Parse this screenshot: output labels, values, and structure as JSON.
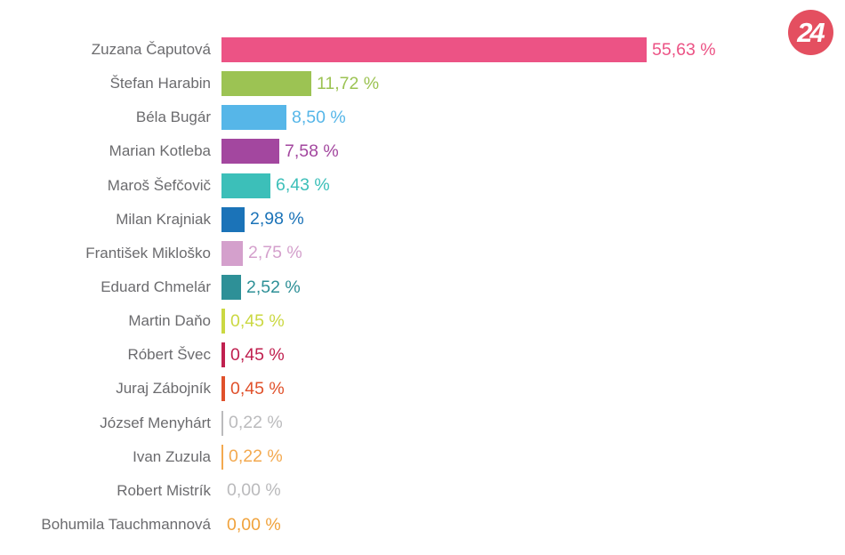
{
  "logo": {
    "text": "24",
    "bg_color": "#e44f60",
    "text_color": "#ffffff"
  },
  "chart_data": {
    "type": "bar",
    "orientation": "horizontal",
    "value_format": "comma_decimal_percent",
    "grid": false,
    "background": "#ffffff",
    "label_color": "#6b6b6e",
    "xlim": [
      0,
      57
    ],
    "categories": [
      "Zuzana Čaputová",
      "Štefan Harabin",
      "Béla Bugár",
      "Marian Kotleba",
      "Maroš Šefčovič",
      "Milan Krajniak",
      "František Mikloško",
      "Eduard Chmelár",
      "Martin Daňo",
      "Róbert Švec",
      "Juraj Zábojník",
      "József Menyhárt",
      "Ivan Zuzula",
      "Robert Mistrík",
      "Bohumila Tauchmannová"
    ],
    "values": [
      55.63,
      11.72,
      8.5,
      7.58,
      6.43,
      2.98,
      2.75,
      2.52,
      0.45,
      0.45,
      0.45,
      0.22,
      0.22,
      0.0,
      0.0
    ],
    "value_labels": [
      "55,63 %",
      "11,72 %",
      "8,50 %",
      "7,58 %",
      "6,43 %",
      "2,98 %",
      "2,75 %",
      "2,52 %",
      "0,45 %",
      "0,45 %",
      "0,45 %",
      "0,22 %",
      "0,22 %",
      "0,00 %",
      "0,00 %"
    ],
    "colors": [
      "#ec5385",
      "#9cc353",
      "#56b6e8",
      "#a3479f",
      "#3cbfb9",
      "#1b73b8",
      "#d4a0cc",
      "#2e9097",
      "#cbd842",
      "#c0204f",
      "#e0512b",
      "#bbbbbd",
      "#f3a94f",
      "#bababc",
      "#f0a23c"
    ]
  }
}
